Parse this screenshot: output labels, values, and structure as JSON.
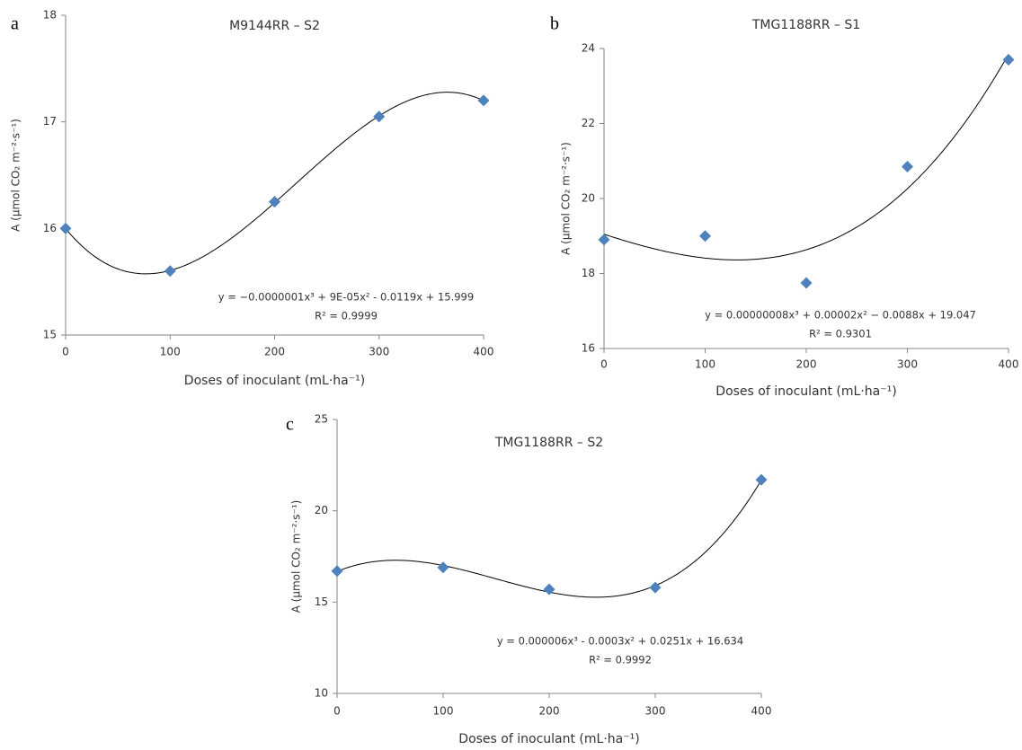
{
  "chart_data": [
    {
      "type": "scatter",
      "panel_label": "a",
      "title": "M9144RR – S2",
      "x_label": "Doses of inoculant (mL·ha⁻¹)",
      "y_label": "A (µmol CO₂ m⁻²·s⁻¹)",
      "x": [
        0,
        100,
        200,
        300,
        400
      ],
      "y": [
        16.0,
        15.6,
        16.25,
        17.05,
        17.2
      ],
      "xlim": [
        0,
        400
      ],
      "xticks": [
        0,
        100,
        200,
        300,
        400
      ],
      "ylim": [
        15,
        18
      ],
      "yticks": [
        15,
        16,
        17,
        18
      ],
      "color": "#4f81bd",
      "trendline": "polynomial-3",
      "equation": "y = −0.0000001x³ + 9E-05x² - 0.0119x + 15.999",
      "r_squared": "R² = 0.9999"
    },
    {
      "type": "scatter",
      "panel_label": "b",
      "title": "TMG1188RR – S1",
      "x_label": "Doses of inoculant  (mL·ha⁻¹)",
      "y_label": "A (µmol CO₂ m⁻²·s⁻¹)",
      "x": [
        0,
        100,
        200,
        300,
        400
      ],
      "y": [
        18.9,
        19.0,
        17.75,
        20.85,
        23.7
      ],
      "xlim": [
        0,
        400
      ],
      "xticks": [
        0,
        100,
        200,
        300,
        400
      ],
      "ylim": [
        16,
        24
      ],
      "yticks": [
        16,
        18,
        20,
        22,
        24
      ],
      "color": "#4f81bd",
      "trendline": "polynomial-3",
      "equation": "y = 0.00000008x³ + 0.00002x² − 0.0088x + 19.047",
      "r_squared": "R² = 0.9301"
    },
    {
      "type": "scatter",
      "panel_label": "c",
      "title": "TMG1188RR – S2",
      "x_label": "Doses of inoculant (mL·ha⁻¹)",
      "y_label": "A (µmol CO₂ m⁻²·s⁻¹)",
      "x": [
        0,
        100,
        200,
        300,
        400
      ],
      "y": [
        16.7,
        16.9,
        15.7,
        15.8,
        21.7
      ],
      "xlim": [
        0,
        400
      ],
      "xticks": [
        0,
        100,
        200,
        300,
        400
      ],
      "ylim": [
        10,
        25
      ],
      "yticks": [
        10,
        15,
        20,
        25
      ],
      "color": "#4f81bd",
      "trendline": "polynomial-3",
      "equation": "y = 0.000006x³  - 0.0003x² + 0.0251x + 16.634",
      "r_squared": "R² = 0.9992"
    }
  ]
}
